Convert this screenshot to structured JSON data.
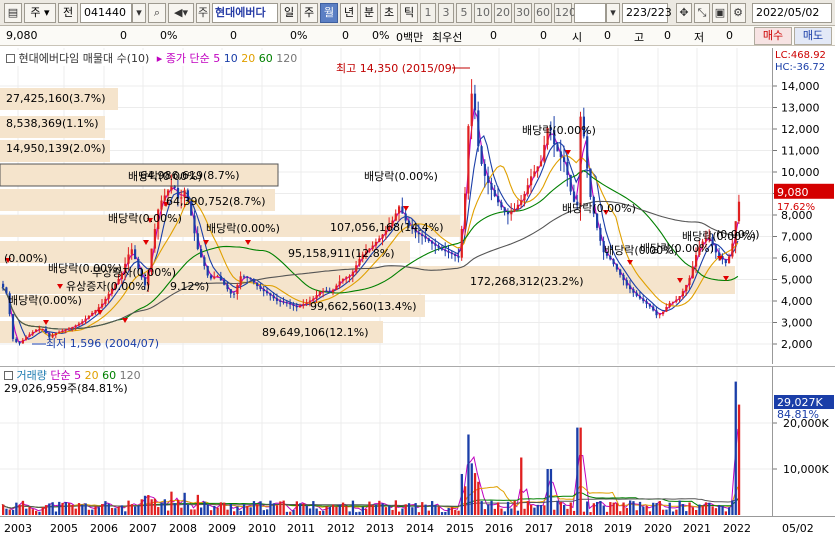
{
  "toolbar": {
    "chart_type": "주",
    "prev_label": "전",
    "code": "041440",
    "stock_name": "현대에버다",
    "periods": [
      "일",
      "주",
      "월",
      "년"
    ],
    "active_period": "월",
    "extra_periods": [
      "분",
      "초",
      "틱"
    ],
    "intervals": [
      "1",
      "3",
      "5",
      "10",
      "20",
      "30",
      "60",
      "120"
    ],
    "count": "223",
    "total": "/223",
    "date": "2022/05/02"
  },
  "quote": {
    "price": "9,080",
    "change": "0",
    "change_pct": "0%",
    "volume": "0",
    "volume_pct": "0%",
    "amount": "0",
    "amount_pct": "0%",
    "amount_unit": "0백만",
    "best_label": "최우선",
    "best_ask": "0",
    "best_bid": "0",
    "open_label": "시",
    "open_value": "0",
    "high_label": "고",
    "high_value": "0",
    "low_label": "저",
    "low_value": "0",
    "buy_label": "매수",
    "sell_label": "매도"
  },
  "upper_legend": {
    "title": "현대에버다임 매물대 수(10)",
    "ma_label": "종가 단순",
    "ma_periods": [
      "5",
      "10",
      "20",
      "60",
      "120"
    ],
    "ma_colors": [
      "#c000c0",
      "#1a3ea8",
      "#e0a000",
      "#008000",
      "#555555"
    ]
  },
  "right_legend": {
    "lc": "LC:468.92",
    "hc": "HC:-36.72"
  },
  "price_axis": {
    "ticks": [
      "14,000",
      "13,000",
      "12,000",
      "11,000",
      "10,000",
      "9,000",
      "8,000",
      "7,000",
      "6,000",
      "5,000",
      "4,000",
      "3,000",
      "2,000"
    ],
    "current_price": "9,080",
    "current_pct": "17.62%"
  },
  "volume_profile": [
    "27,425,160(3.7%)",
    "8,538,369(1.1%)",
    "14,950,139(2.0%)",
    "64,986,619(8.7%)",
    "64,390,752(8.7%)",
    "107,056,168(14.4%)",
    "95,158,911(12.8%)",
    "172,268,312(23.2%)",
    "99,662,560(13.4%)",
    "89,649,106(12.1%)"
  ],
  "annotations": {
    "high": "최고 14,350 (2015/09)",
    "low": "최저 1,596 (2004/07)",
    "dividend": "배당락(0.00%)",
    "paid_in": "유상증자(0.00%)",
    "bonus": "무상증자(0.00%)",
    "other_pct": "(0.00%)",
    "pct_912": "9.12%)"
  },
  "lower_legend": {
    "title": "거래량",
    "ma_label": "단순",
    "ma_periods": [
      "5",
      "20",
      "60",
      "120"
    ],
    "ma_colors": [
      "#c000c0",
      "#e0a000",
      "#008000",
      "#555555"
    ],
    "last_volume": "29,026,959주(84.81%)"
  },
  "volume_axis": {
    "ticks": [
      "20,000K",
      "10,000K"
    ],
    "current": "29,027K",
    "current_pct": "84.81%"
  },
  "x_axis": {
    "years": [
      "2003",
      "2005",
      "2006",
      "2007",
      "2008",
      "2009",
      "2010",
      "2011",
      "2012",
      "2013",
      "2014",
      "2015",
      "2016",
      "2017",
      "2018",
      "2019",
      "2020",
      "2021",
      "2022"
    ],
    "last_date": "05/02"
  },
  "colors": {
    "up": "#e02020",
    "down": "#1a3ea8",
    "profile": "#f5e4cc",
    "accent": "#c00000"
  }
}
